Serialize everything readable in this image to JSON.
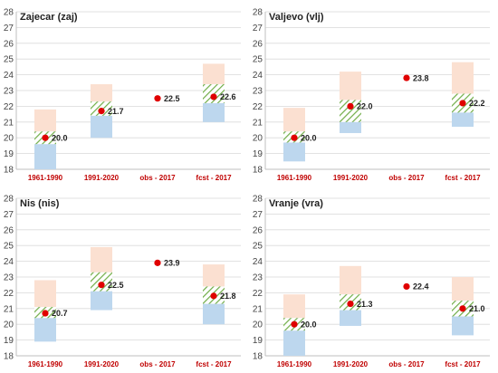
{
  "colors": {
    "upper": "#fbe0d1",
    "lower": "#bdd7ee",
    "hatch": "#70ad47",
    "dot": "#e00000",
    "category_label": "#c00000",
    "grid": "#d9d9d9",
    "axis": "#bfbfbf"
  },
  "chart_data": [
    {
      "type": "box",
      "title": "Zajecar (zaj)",
      "ylim": [
        18,
        28
      ],
      "yticks": [
        18,
        19,
        20,
        21,
        22,
        23,
        24,
        25,
        26,
        27,
        28
      ],
      "categories": [
        "1961-1990",
        "1991-2020",
        "obs - 2017",
        "fcst - 2017"
      ],
      "boxes": [
        {
          "category": "1961-1990",
          "min": 18.0,
          "lower": 19.6,
          "upper": 20.4,
          "max": 21.8
        },
        {
          "category": "1991-2020",
          "min": 20.0,
          "lower": 21.4,
          "upper": 22.3,
          "max": 23.4
        },
        null,
        {
          "category": "fcst - 2017",
          "min": 21.0,
          "lower": 22.2,
          "upper": 23.4,
          "max": 24.7
        }
      ],
      "points": [
        20.0,
        21.7,
        22.5,
        22.6
      ],
      "labels": [
        "20.0",
        "21.7",
        "22.5",
        "22.6"
      ]
    },
    {
      "type": "box",
      "title": "Valjevo (vlj)",
      "ylim": [
        18,
        28
      ],
      "yticks": [
        18,
        19,
        20,
        21,
        22,
        23,
        24,
        25,
        26,
        27,
        28
      ],
      "categories": [
        "1961-1990",
        "1991-2020",
        "obs - 2017",
        "fcst - 2017"
      ],
      "boxes": [
        {
          "category": "1961-1990",
          "min": 18.5,
          "lower": 19.7,
          "upper": 20.4,
          "max": 21.9
        },
        {
          "category": "1991-2020",
          "min": 20.3,
          "lower": 21.0,
          "upper": 22.4,
          "max": 24.2
        },
        null,
        {
          "category": "fcst - 2017",
          "min": 20.7,
          "lower": 21.6,
          "upper": 22.8,
          "max": 24.8
        }
      ],
      "points": [
        20.0,
        22.0,
        23.8,
        22.2
      ],
      "labels": [
        "20.0",
        "22.0",
        "23.8",
        "22.2"
      ]
    },
    {
      "type": "box",
      "title": "Nis (nis)",
      "ylim": [
        18,
        28
      ],
      "yticks": [
        18,
        19,
        20,
        21,
        22,
        23,
        24,
        25,
        26,
        27,
        28
      ],
      "categories": [
        "1961-1990",
        "1991-2020",
        "obs - 2017",
        "fcst - 2017"
      ],
      "boxes": [
        {
          "category": "1961-1990",
          "min": 18.9,
          "lower": 20.4,
          "upper": 21.1,
          "max": 22.8
        },
        {
          "category": "1991-2020",
          "min": 20.9,
          "lower": 22.1,
          "upper": 23.3,
          "max": 24.9
        },
        null,
        {
          "category": "fcst - 2017",
          "min": 20.0,
          "lower": 21.3,
          "upper": 22.4,
          "max": 23.8
        }
      ],
      "points": [
        20.7,
        22.5,
        23.9,
        21.8
      ],
      "labels": [
        "20.7",
        "22.5",
        "23.9",
        "21.8"
      ]
    },
    {
      "type": "box",
      "title": "Vranje (vra)",
      "ylim": [
        18,
        28
      ],
      "yticks": [
        18,
        19,
        20,
        21,
        22,
        23,
        24,
        25,
        26,
        27,
        28
      ],
      "categories": [
        "1961-1990",
        "1991-2020",
        "obs - 2017",
        "fcst - 2017"
      ],
      "boxes": [
        {
          "category": "1961-1990",
          "min": 18.0,
          "lower": 19.6,
          "upper": 20.4,
          "max": 21.9
        },
        {
          "category": "1991-2020",
          "min": 19.9,
          "lower": 20.9,
          "upper": 21.9,
          "max": 23.7
        },
        null,
        {
          "category": "fcst - 2017",
          "min": 19.3,
          "lower": 20.5,
          "upper": 21.5,
          "max": 23.0
        }
      ],
      "points": [
        20.0,
        21.3,
        22.4,
        21.0
      ],
      "labels": [
        "20.0",
        "21.3",
        "22.4",
        "21.0"
      ]
    }
  ]
}
